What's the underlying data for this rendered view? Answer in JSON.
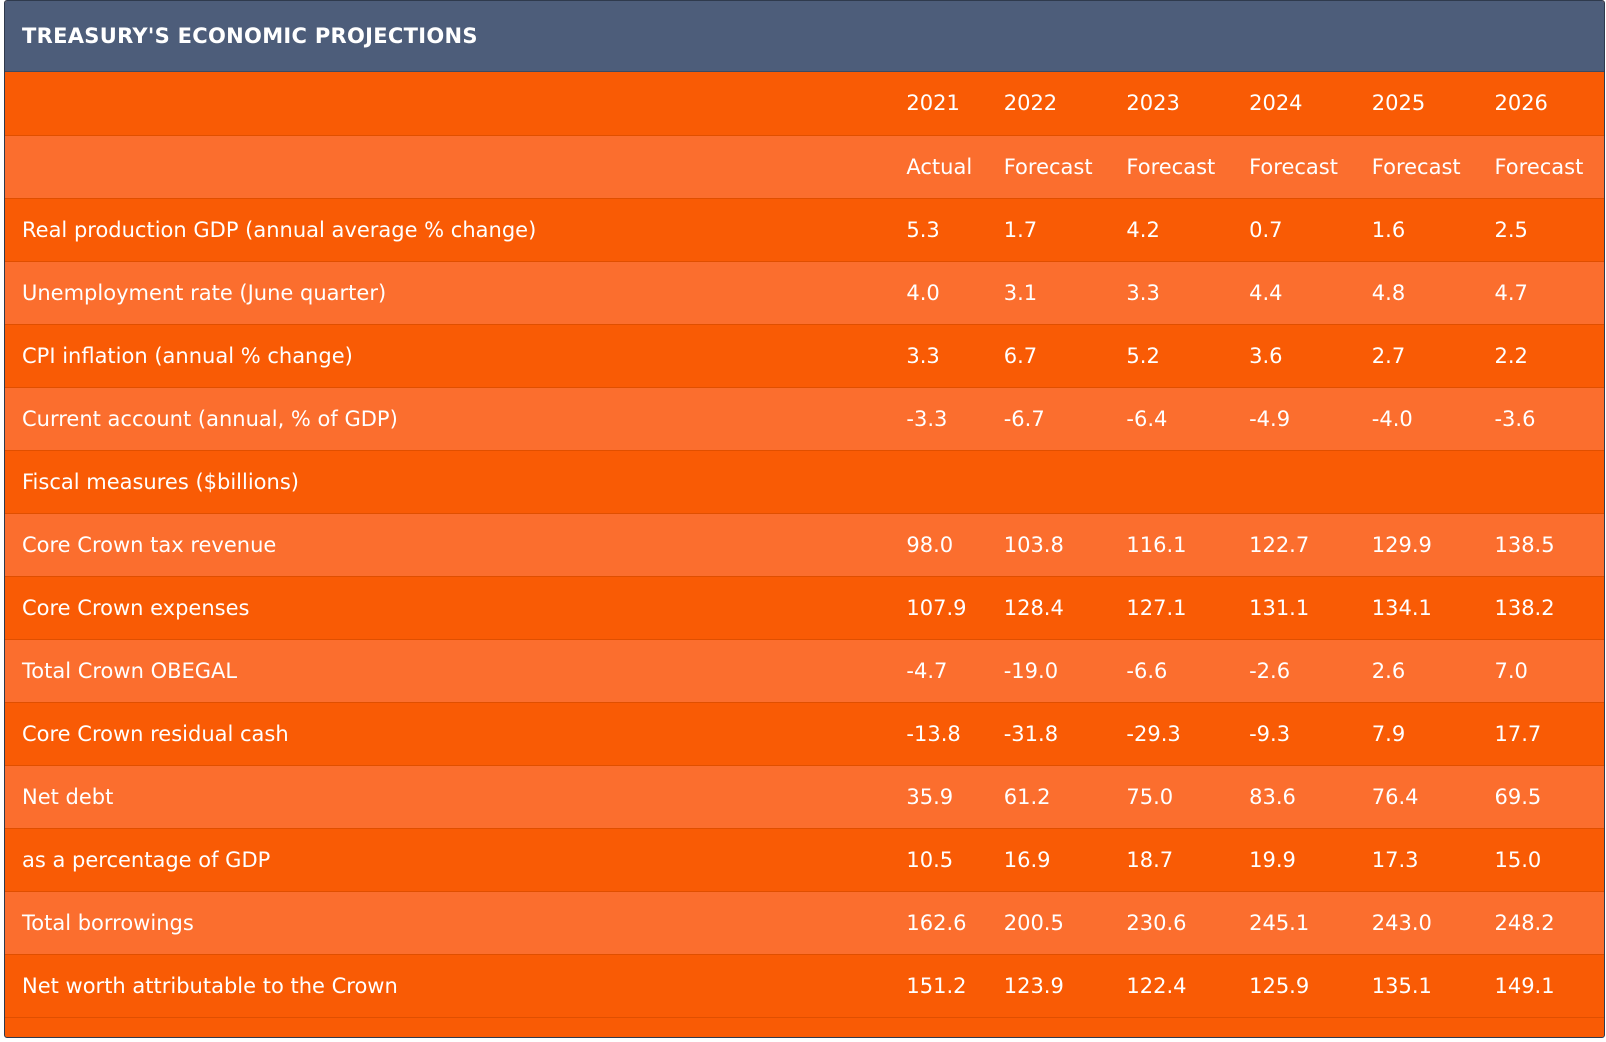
{
  "title": "TREASURY'S ECONOMIC PROJECTIONS",
  "years": [
    "2021",
    "2022",
    "2023",
    "2024",
    "2025",
    "2026"
  ],
  "statuses": [
    "Actual",
    "Forecast",
    "Forecast",
    "Forecast",
    "Forecast",
    "Forecast"
  ],
  "rows": [
    {
      "label": "Real production GDP (annual average % change)",
      "values": [
        "5.3",
        "1.7",
        "4.2",
        "0.7",
        "1.6",
        "2.5"
      ]
    },
    {
      "label": "Unemployment rate (June quarter)",
      "values": [
        "4.0",
        "3.1",
        "3.3",
        "4.4",
        "4.8",
        "4.7"
      ]
    },
    {
      "label": "CPI inflation (annual % change)",
      "values": [
        "3.3",
        "6.7",
        "5.2",
        "3.6",
        "2.7",
        "2.2"
      ]
    },
    {
      "label": "Current account (annual, % of GDP)",
      "values": [
        "-3.3",
        "-6.7",
        "-6.4",
        "-4.9",
        "-4.0",
        "-3.6"
      ]
    },
    {
      "label": "Fiscal measures ($billions)",
      "values": [
        "",
        "",
        "",
        "",
        "",
        ""
      ]
    },
    {
      "label": "Core Crown tax revenue",
      "values": [
        "98.0",
        "103.8",
        "116.1",
        "122.7",
        "129.9",
        "138.5"
      ]
    },
    {
      "label": "Core Crown expenses",
      "values": [
        "107.9",
        "128.4",
        "127.1",
        "131.1",
        "134.1",
        "138.2"
      ]
    },
    {
      "label": "Total Crown OBEGAL",
      "values": [
        "-4.7",
        "-19.0",
        "-6.6",
        "-2.6",
        "2.6",
        "7.0"
      ]
    },
    {
      "label": "Core Crown residual cash",
      "values": [
        "-13.8",
        "-31.8",
        "-29.3",
        "-9.3",
        "7.9",
        "17.7"
      ]
    },
    {
      "label": "Net debt",
      "values": [
        "35.9",
        "61.2",
        "75.0",
        "83.6",
        "76.4",
        "69.5"
      ]
    },
    {
      "label": "as a percentage of GDP",
      "values": [
        "10.5",
        "16.9",
        "18.7",
        "19.9",
        "17.3",
        "15.0"
      ]
    },
    {
      "label": "Total borrowings",
      "values": [
        "162.6",
        "200.5",
        "230.6",
        "245.1",
        "243.0",
        "248.2"
      ]
    },
    {
      "label": "Net worth attributable to the Crown",
      "values": [
        "151.2",
        "123.9",
        "122.4",
        "125.9",
        "135.1",
        "149.1"
      ]
    }
  ],
  "colors": {
    "header_bar": "#4d5d7a",
    "row_dark": "#f95b05",
    "row_light": "#fb6e2e",
    "text": "#ffffff"
  }
}
